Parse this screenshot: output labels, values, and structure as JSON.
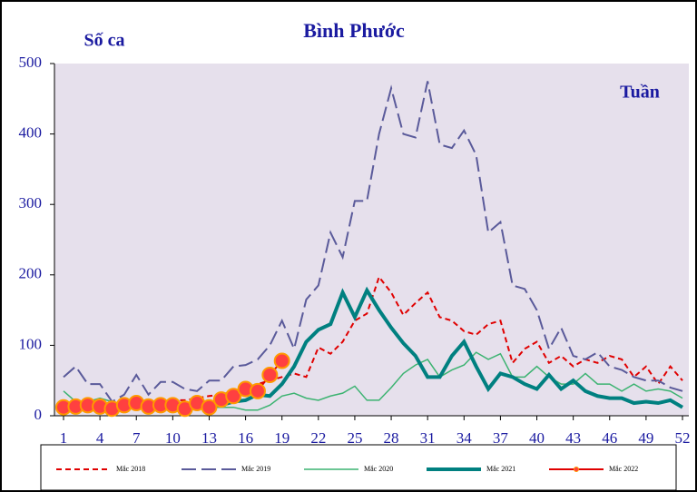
{
  "chart_data": {
    "type": "line",
    "title": "Bình Phước",
    "y_label": "Số ca",
    "x_label": "Tuần",
    "x": [
      1,
      2,
      3,
      4,
      5,
      6,
      7,
      8,
      9,
      10,
      11,
      12,
      13,
      14,
      15,
      16,
      17,
      18,
      19,
      20,
      21,
      22,
      23,
      24,
      25,
      26,
      27,
      28,
      29,
      30,
      31,
      32,
      33,
      34,
      35,
      36,
      37,
      38,
      39,
      40,
      41,
      42,
      43,
      44,
      45,
      46,
      47,
      48,
      49,
      50,
      51,
      52
    ],
    "xlim": [
      1,
      52
    ],
    "xticks": [
      1,
      4,
      7,
      10,
      13,
      16,
      19,
      22,
      25,
      28,
      31,
      34,
      37,
      40,
      43,
      46,
      49,
      52
    ],
    "ylim": [
      0,
      500
    ],
    "yticks": [
      0,
      100,
      200,
      300,
      400,
      500
    ],
    "legend": "bottom",
    "series": [
      {
        "name": "Mắc 2018",
        "color": "#e00000",
        "style": "dashed",
        "line_width": 2,
        "values": [
          15,
          18,
          20,
          22,
          18,
          20,
          22,
          18,
          20,
          22,
          22,
          25,
          28,
          30,
          35,
          40,
          45,
          50,
          55,
          60,
          55,
          97,
          88,
          105,
          135,
          145,
          197,
          175,
          143,
          160,
          175,
          140,
          135,
          120,
          115,
          130,
          135,
          75,
          95,
          105,
          75,
          85,
          70,
          80,
          75,
          85,
          80,
          55,
          70,
          45,
          70,
          50
        ]
      },
      {
        "name": "Mắc 2019",
        "color": "#5a5a9a",
        "style": "long-dashed",
        "line_width": 2,
        "values": [
          55,
          70,
          45,
          45,
          20,
          30,
          58,
          30,
          48,
          48,
          38,
          35,
          50,
          50,
          70,
          72,
          80,
          100,
          135,
          95,
          165,
          185,
          260,
          225,
          305,
          305,
          400,
          465,
          400,
          395,
          475,
          385,
          380,
          405,
          370,
          260,
          275,
          185,
          180,
          150,
          95,
          125,
          85,
          80,
          90,
          70,
          65,
          55,
          50,
          50,
          40,
          35
        ]
      },
      {
        "name": "Mắc 2020",
        "color": "#3cb371",
        "style": "solid",
        "line_width": 1.5,
        "values": [
          35,
          20,
          20,
          25,
          20,
          15,
          15,
          15,
          15,
          15,
          15,
          15,
          12,
          12,
          12,
          8,
          8,
          15,
          28,
          32,
          25,
          22,
          28,
          32,
          42,
          22,
          22,
          40,
          60,
          72,
          80,
          55,
          65,
          72,
          90,
          80,
          88,
          55,
          55,
          70,
          55,
          45,
          45,
          60,
          45,
          45,
          35,
          45,
          35,
          38,
          35,
          25
        ]
      },
      {
        "name": "Mắc 2021",
        "color": "#008080",
        "style": "solid",
        "line_width": 4,
        "values": [
          10,
          15,
          15,
          15,
          12,
          15,
          15,
          15,
          15,
          15,
          15,
          15,
          15,
          15,
          20,
          22,
          30,
          28,
          45,
          70,
          105,
          122,
          130,
          175,
          140,
          178,
          150,
          125,
          103,
          85,
          55,
          55,
          85,
          105,
          70,
          38,
          60,
          55,
          45,
          38,
          58,
          38,
          50,
          35,
          28,
          25,
          25,
          18,
          20,
          18,
          22,
          12
        ]
      },
      {
        "name": "Mắc 2022",
        "color": "#e00000",
        "marker_color": "#ff4040",
        "marker_edge": "#ff9900",
        "style": "solid",
        "line_width": 2,
        "values": [
          12,
          13,
          15,
          13,
          10,
          15,
          18,
          13,
          15,
          15,
          10,
          18,
          12,
          23,
          28,
          38,
          35,
          58,
          78,
          null,
          null,
          null,
          null,
          null,
          null,
          null,
          null,
          null,
          null,
          null,
          null,
          null,
          null,
          null,
          null,
          null,
          null,
          null,
          null,
          null,
          null,
          null,
          null,
          null,
          null,
          null,
          null,
          null,
          null,
          null,
          null,
          null
        ]
      }
    ]
  }
}
